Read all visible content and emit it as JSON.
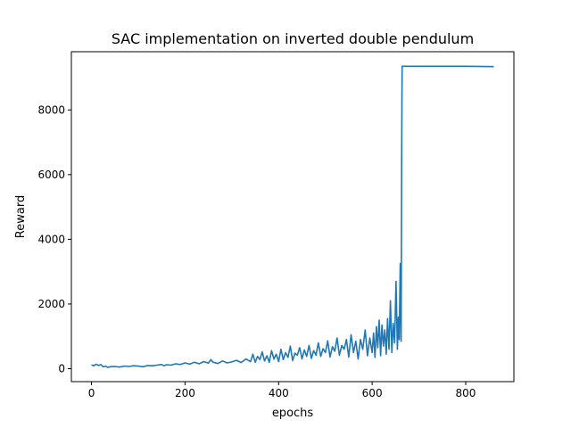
{
  "chart_data": {
    "type": "line",
    "title": "SAC implementation on inverted double pendulum",
    "xlabel": "epochs",
    "ylabel": "Reward",
    "xlim": [
      -43,
      903
    ],
    "ylim": [
      -400,
      9800
    ],
    "xticks": [
      0,
      200,
      400,
      600,
      800
    ],
    "yticks": [
      0,
      2000,
      4000,
      6000,
      8000
    ],
    "grid": false,
    "legend": "none",
    "series": [
      {
        "color": "#1f77b4",
        "x": [
          0,
          5,
          10,
          15,
          20,
          25,
          30,
          35,
          40,
          50,
          60,
          70,
          80,
          90,
          100,
          110,
          120,
          130,
          140,
          150,
          155,
          160,
          170,
          180,
          190,
          200,
          210,
          220,
          230,
          240,
          250,
          255,
          260,
          270,
          280,
          290,
          300,
          310,
          320,
          330,
          340,
          345,
          350,
          355,
          360,
          365,
          370,
          375,
          380,
          385,
          390,
          395,
          400,
          405,
          410,
          415,
          420,
          425,
          430,
          435,
          440,
          445,
          450,
          455,
          460,
          465,
          470,
          475,
          480,
          485,
          490,
          495,
          500,
          505,
          510,
          515,
          520,
          525,
          530,
          535,
          540,
          545,
          550,
          555,
          560,
          565,
          570,
          575,
          580,
          585,
          590,
          595,
          600,
          603,
          606,
          609,
          612,
          615,
          618,
          621,
          624,
          627,
          630,
          633,
          636,
          639,
          642,
          645,
          648,
          651,
          654,
          656,
          658,
          660,
          662,
          663,
          664,
          666,
          670,
          700,
          750,
          800,
          860
        ],
        "y": [
          120,
          90,
          140,
          100,
          130,
          60,
          80,
          40,
          60,
          70,
          50,
          80,
          70,
          90,
          80,
          60,
          100,
          90,
          110,
          130,
          90,
          120,
          110,
          150,
          130,
          180,
          140,
          200,
          150,
          220,
          170,
          280,
          200,
          160,
          240,
          180,
          210,
          260,
          190,
          300,
          220,
          450,
          200,
          380,
          280,
          520,
          240,
          400,
          200,
          560,
          300,
          450,
          220,
          600,
          280,
          500,
          350,
          700,
          250,
          480,
          420,
          650,
          300,
          580,
          380,
          720,
          320,
          560,
          420,
          800,
          380,
          620,
          500,
          860,
          360,
          680,
          540,
          950,
          420,
          720,
          600,
          900,
          360,
          1050,
          500,
          850,
          300,
          900,
          600,
          1200,
          400,
          950,
          500,
          1100,
          350,
          1300,
          650,
          1500,
          400,
          1350,
          700,
          1200,
          450,
          1550,
          600,
          2100,
          500,
          1400,
          800,
          2700,
          600,
          1600,
          900,
          3250,
          850,
          6500,
          9350,
          9350,
          9350,
          9350,
          9350,
          9350,
          9340
        ]
      }
    ]
  }
}
